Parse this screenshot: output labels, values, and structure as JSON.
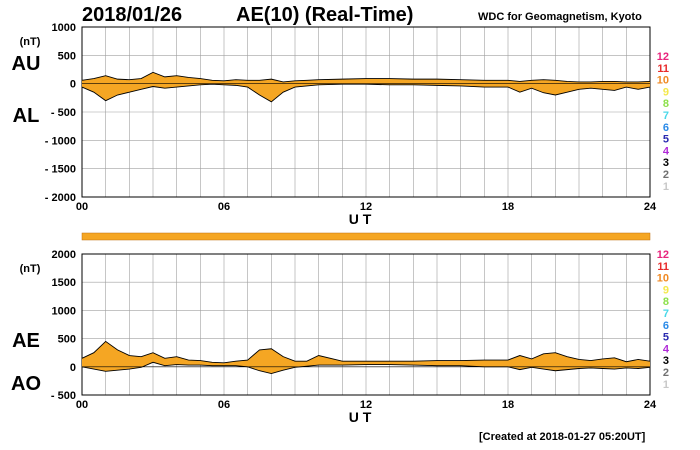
{
  "header": {
    "date": "2018/01/26",
    "title": "AE(10) (Real-Time)",
    "source": "WDC for Geomagnetism, Kyoto"
  },
  "footer": {
    "created": "[Created at 2018-01-27 05:20UT]"
  },
  "colors": {
    "fill": "#f5a623",
    "line": "#000000",
    "grid": "#a0a0a0",
    "bar": "#f5a623"
  },
  "level_legend": [
    {
      "label": "12",
      "color": "#e8247c"
    },
    {
      "label": "11",
      "color": "#e82c2c"
    },
    {
      "label": "10",
      "color": "#f08a24"
    },
    {
      "label": "9",
      "color": "#f4e84a"
    },
    {
      "label": "8",
      "color": "#8ce04a"
    },
    {
      "label": "7",
      "color": "#4ad8e8"
    },
    {
      "label": "6",
      "color": "#2a8ae8"
    },
    {
      "label": "5",
      "color": "#2a2ab0"
    },
    {
      "label": "4",
      "color": "#b02ad8"
    },
    {
      "label": "3",
      "color": "#000000"
    },
    {
      "label": "2",
      "color": "#707070"
    },
    {
      "label": "1",
      "color": "#c8c8c8"
    }
  ],
  "chart_data": [
    {
      "type": "area",
      "series": [
        {
          "name": "AU",
          "x": [
            0,
            0.5,
            1,
            1.5,
            2,
            2.5,
            3,
            3.5,
            4,
            4.5,
            5,
            5.5,
            6,
            6.5,
            7,
            7.5,
            8,
            8.5,
            9,
            9.5,
            10,
            11,
            12,
            13,
            14,
            15,
            16,
            17,
            18,
            18.5,
            19,
            19.5,
            20,
            20.5,
            21,
            21.5,
            22,
            22.5,
            23,
            23.5,
            24
          ],
          "values": [
            60,
            90,
            140,
            80,
            70,
            90,
            200,
            120,
            140,
            110,
            90,
            60,
            50,
            70,
            60,
            60,
            80,
            30,
            50,
            60,
            70,
            80,
            90,
            90,
            80,
            80,
            70,
            60,
            60,
            40,
            60,
            70,
            60,
            40,
            30,
            30,
            40,
            40,
            30,
            30,
            40
          ]
        },
        {
          "name": "AL",
          "x": [
            0,
            0.5,
            1,
            1.5,
            2,
            2.5,
            3,
            3.5,
            4,
            4.5,
            5,
            5.5,
            6,
            6.5,
            7,
            7.5,
            8,
            8.5,
            9,
            9.5,
            10,
            11,
            12,
            13,
            14,
            15,
            16,
            17,
            18,
            18.5,
            19,
            19.5,
            20,
            20.5,
            21,
            21.5,
            22,
            22.5,
            23,
            23.5,
            24
          ],
          "values": [
            -60,
            -150,
            -300,
            -200,
            -150,
            -100,
            -50,
            -80,
            -60,
            -40,
            -20,
            -10,
            -20,
            -30,
            -60,
            -200,
            -320,
            -150,
            -60,
            -40,
            -20,
            -10,
            -10,
            -20,
            -20,
            -30,
            -40,
            -60,
            -60,
            -150,
            -80,
            -160,
            -200,
            -150,
            -100,
            -80,
            -100,
            -120,
            -60,
            -100,
            -60
          ]
        }
      ],
      "ylim": [
        -2000,
        1000
      ],
      "yticks": [
        1000,
        500,
        0,
        -500,
        -1000,
        -1500,
        -2000
      ],
      "ytick_labels": [
        "1000",
        "500",
        "0",
        "- 500",
        "- 1000",
        "- 1500",
        "- 2000"
      ],
      "unit": "(nT)",
      "xlim": [
        0,
        24
      ],
      "xticks": [
        0,
        6,
        12,
        18,
        24
      ],
      "xtick_labels": [
        "00",
        "06",
        "12",
        "18",
        "24"
      ],
      "xlabel": "U T",
      "series_labels": [
        "AU",
        "AL"
      ],
      "grid": true
    },
    {
      "type": "area",
      "series": [
        {
          "name": "AE",
          "x": [
            0,
            0.5,
            1,
            1.5,
            2,
            2.5,
            3,
            3.5,
            4,
            4.5,
            5,
            5.5,
            6,
            6.5,
            7,
            7.5,
            8,
            8.5,
            9,
            9.5,
            10,
            11,
            12,
            13,
            14,
            15,
            16,
            17,
            18,
            18.5,
            19,
            19.5,
            20,
            20.5,
            21,
            21.5,
            22,
            22.5,
            23,
            23.5,
            24
          ],
          "values": [
            150,
            250,
            450,
            300,
            200,
            180,
            250,
            150,
            180,
            120,
            110,
            80,
            70,
            100,
            120,
            300,
            320,
            180,
            100,
            100,
            200,
            100,
            100,
            100,
            100,
            110,
            110,
            120,
            120,
            200,
            140,
            230,
            250,
            180,
            130,
            110,
            140,
            160,
            90,
            130,
            100
          ]
        },
        {
          "name": "AO",
          "x": [
            0,
            0.5,
            1,
            1.5,
            2,
            2.5,
            3,
            3.5,
            4,
            4.5,
            5,
            5.5,
            6,
            6.5,
            7,
            7.5,
            8,
            8.5,
            9,
            9.5,
            10,
            11,
            12,
            13,
            14,
            15,
            16,
            17,
            18,
            18.5,
            19,
            19.5,
            20,
            20.5,
            21,
            21.5,
            22,
            22.5,
            23,
            23.5,
            24
          ],
          "values": [
            0,
            -40,
            -80,
            -60,
            -40,
            -10,
            80,
            20,
            40,
            30,
            30,
            20,
            20,
            20,
            0,
            -70,
            -120,
            -60,
            -10,
            10,
            30,
            30,
            40,
            40,
            30,
            20,
            20,
            0,
            0,
            -50,
            -10,
            -40,
            -70,
            -50,
            -30,
            -20,
            -30,
            -40,
            -20,
            -30,
            -10
          ]
        }
      ],
      "ylim": [
        -500,
        2000
      ],
      "yticks": [
        2000,
        1500,
        1000,
        500,
        0,
        -500
      ],
      "ytick_labels": [
        "2000",
        "1500",
        "1000",
        "500",
        "0",
        "- 500"
      ],
      "unit": "(nT)",
      "xlim": [
        0,
        24
      ],
      "xticks": [
        0,
        6,
        12,
        18,
        24
      ],
      "xtick_labels": [
        "00",
        "06",
        "12",
        "18",
        "24"
      ],
      "xlabel": "U T",
      "series_labels": [
        "AE",
        "AO"
      ],
      "grid": true
    }
  ]
}
